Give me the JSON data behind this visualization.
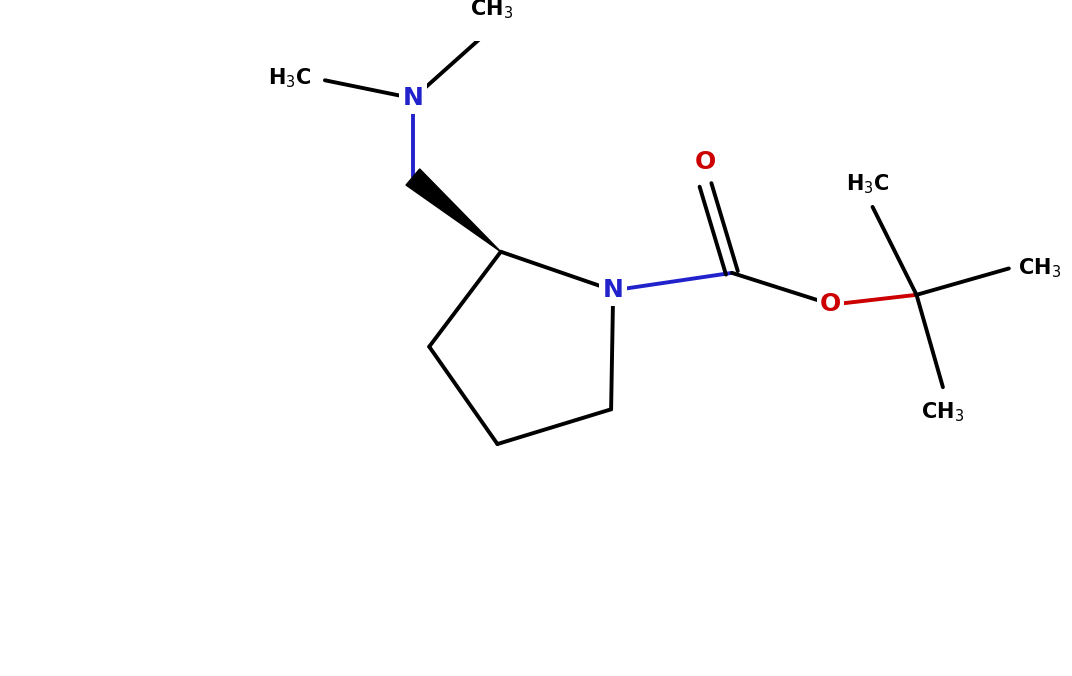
{
  "background_color": "#ffffff",
  "bond_color": "#000000",
  "N_color": "#2222cc",
  "O_color": "#cc0000",
  "line_width": 2.8,
  "font_size": 15,
  "figsize": [
    10.72,
    6.76
  ],
  "dpi": 100,
  "xlim": [
    -1.5,
    10.5
  ],
  "ylim": [
    -1.0,
    6.0
  ]
}
